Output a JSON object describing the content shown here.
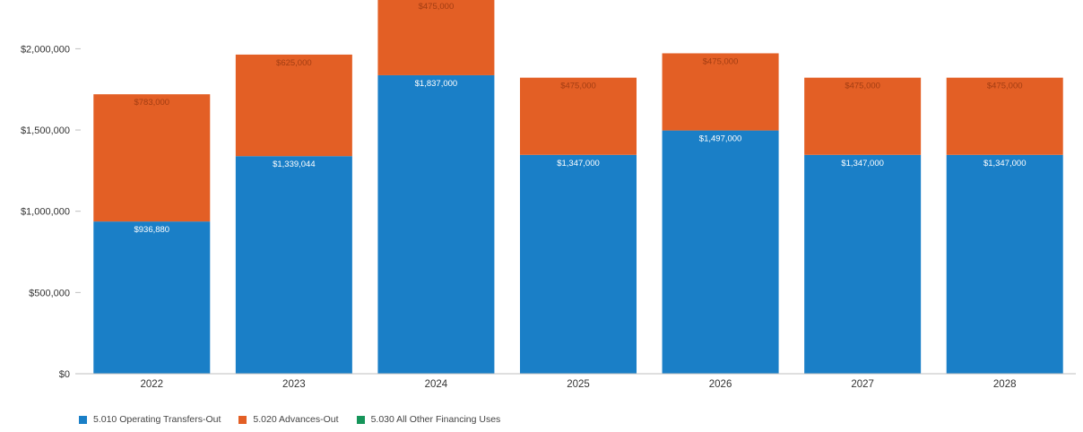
{
  "chart_data": {
    "type": "bar",
    "stacked": true,
    "categories": [
      "2022",
      "2023",
      "2024",
      "2025",
      "2026",
      "2027",
      "2028"
    ],
    "series": [
      {
        "name": "5.010 Operating Transfers-Out",
        "color": "#1a7fc7",
        "values": [
          936880,
          1339044,
          1837000,
          1347000,
          1497000,
          1347000,
          1347000
        ],
        "labels": [
          "$936,880",
          "$1,339,044",
          "$1,837,000",
          "$1,347,000",
          "$1,497,000",
          "$1,347,000",
          "$1,347,000"
        ]
      },
      {
        "name": "5.020 Advances-Out",
        "color": "#e35f25",
        "values": [
          783000,
          625000,
          475000,
          475000,
          475000,
          475000,
          475000
        ],
        "labels": [
          "$783,000",
          "$625,000",
          "$475,000",
          "$475,000",
          "$475,000",
          "$475,000",
          "$475,000"
        ]
      },
      {
        "name": "5.030 All Other Financing Uses",
        "color": "#16955a",
        "values": [
          0,
          0,
          0,
          0,
          0,
          0,
          0
        ],
        "labels": []
      }
    ],
    "ylim": [
      0,
      2300000
    ],
    "yticks": [
      0,
      500000,
      1000000,
      1500000,
      2000000
    ],
    "ytick_labels": [
      "$0",
      "$500,000",
      "$1,000,000",
      "$1,500,000",
      "$2,000,000"
    ],
    "title": "",
    "xlabel": "",
    "ylabel": "",
    "grid": false,
    "legend_position": "bottom-left"
  }
}
